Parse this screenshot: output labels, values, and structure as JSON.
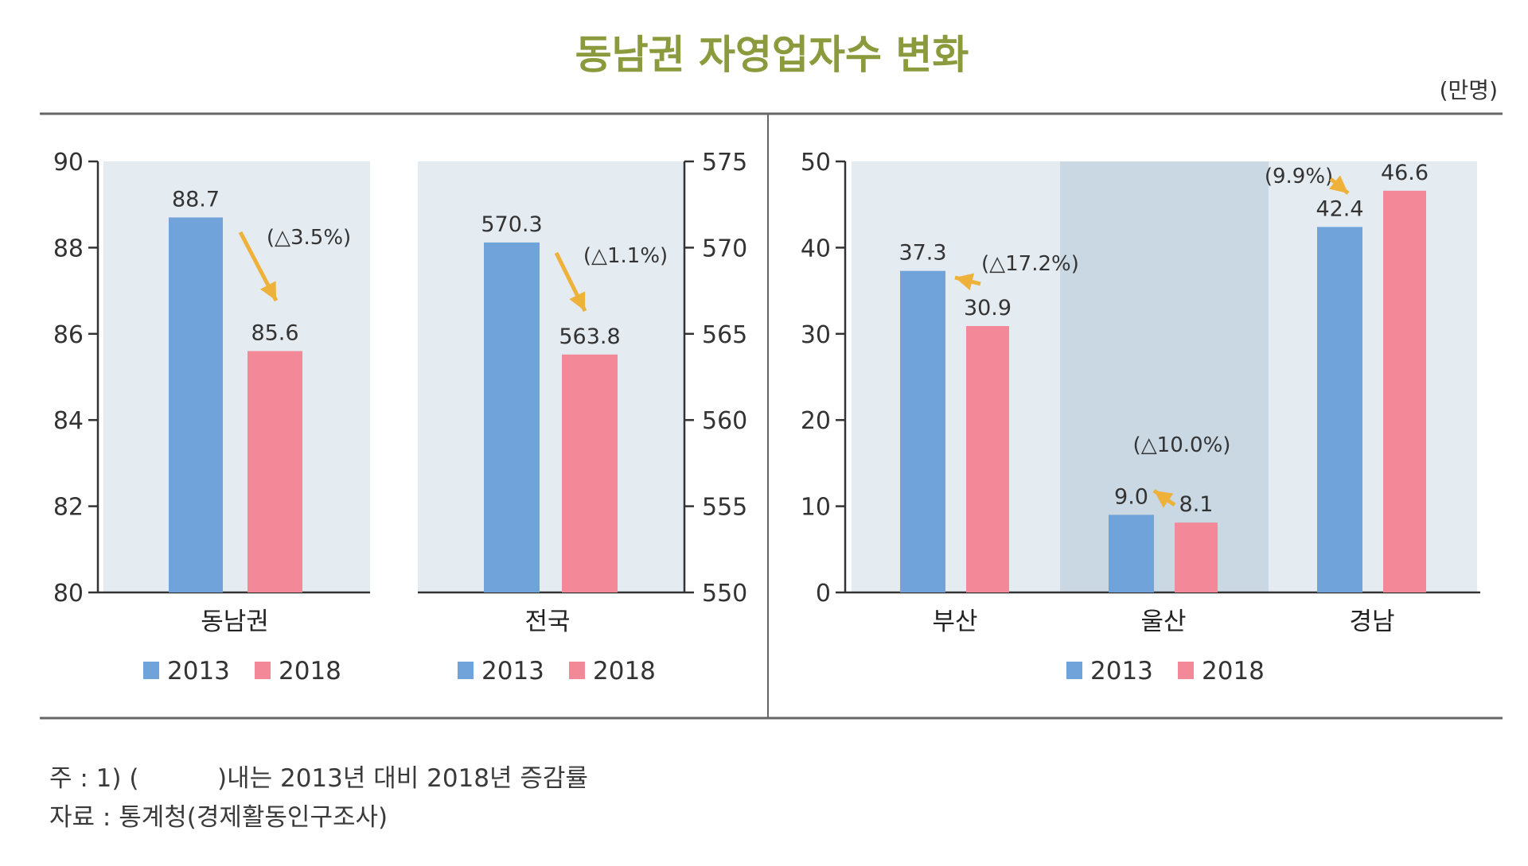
{
  "title": "동남권 자영업자수 변화",
  "unit": "(만명)",
  "colors": {
    "y2013": "#6fa3d9",
    "y2018": "#f28898",
    "panel_bg": "#e4ebf1",
    "panel_bg_dark": "#c9d8e3",
    "arrow": "#eeb13a",
    "title": "#8a9a3c"
  },
  "notes": {
    "note1": "주 : 1) (          )내는 2013년 대비 2018년 증감률",
    "source": "자료 : 통계청(경제활동인구조사)"
  },
  "chart_data": [
    {
      "type": "bar",
      "categories": [
        "동남권"
      ],
      "series": [
        {
          "name": "2013",
          "values": [
            88.7
          ]
        },
        {
          "name": "2018",
          "values": [
            85.6
          ]
        }
      ],
      "value_labels": [
        "88.7",
        "85.6"
      ],
      "change_labels": [
        "(△3.5%)"
      ],
      "yaxis": "left",
      "ylim": [
        80,
        90
      ],
      "yticks": [
        80,
        82,
        84,
        86,
        88,
        90
      ],
      "legend": [
        "2013",
        "2018"
      ],
      "legend_position": "bottom"
    },
    {
      "type": "bar",
      "categories": [
        "전국"
      ],
      "series": [
        {
          "name": "2013",
          "values": [
            570.3
          ]
        },
        {
          "name": "2018",
          "values": [
            563.8
          ]
        }
      ],
      "value_labels": [
        "570.3",
        "563.8"
      ],
      "change_labels": [
        "(△1.1%)"
      ],
      "yaxis": "right",
      "ylim": [
        550,
        575
      ],
      "yticks": [
        550,
        555,
        560,
        565,
        570,
        575
      ],
      "legend": [
        "2013",
        "2018"
      ],
      "legend_position": "bottom"
    },
    {
      "type": "bar",
      "categories": [
        "부산",
        "울산",
        "경남"
      ],
      "series": [
        {
          "name": "2013",
          "values": [
            37.3,
            9.0,
            42.4
          ]
        },
        {
          "name": "2018",
          "values": [
            30.9,
            8.1,
            46.6
          ]
        }
      ],
      "value_labels": [
        [
          "37.3",
          "9.0",
          "42.4"
        ],
        [
          "30.9",
          "8.1",
          "46.6"
        ]
      ],
      "change_labels": [
        "(△17.2%)",
        "(△10.0%)",
        "(9.9%)"
      ],
      "yaxis": "left",
      "ylim": [
        0,
        50
      ],
      "yticks": [
        0,
        10,
        20,
        30,
        40,
        50
      ],
      "legend": [
        "2013",
        "2018"
      ],
      "legend_position": "bottom"
    }
  ]
}
